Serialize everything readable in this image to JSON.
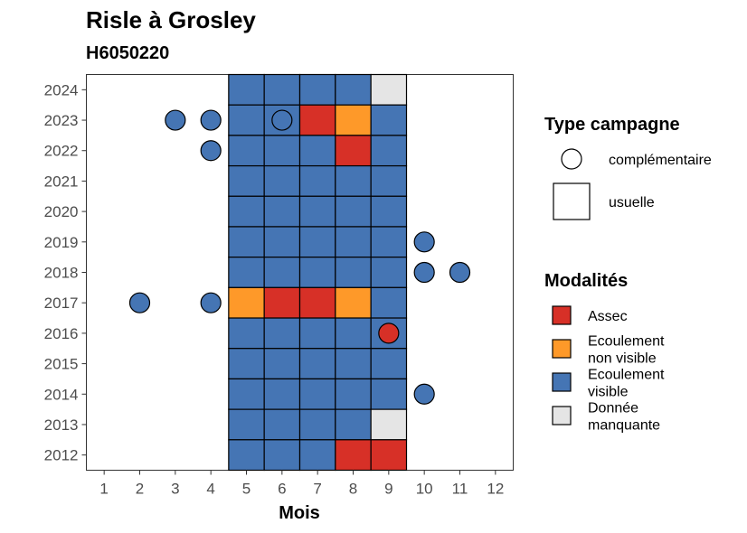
{
  "chart_data": {
    "type": "heatmap",
    "title": "Risle à Grosley",
    "subtitle": "H6050220",
    "xlabel": "Mois",
    "ylabel": "",
    "xlim": [
      0.5,
      12.5
    ],
    "ylim": [
      2011.5,
      2024.5
    ],
    "x_ticks": [
      "1",
      "2",
      "3",
      "4",
      "5",
      "6",
      "7",
      "8",
      "9",
      "10",
      "11",
      "12"
    ],
    "y_ticks": [
      "2012",
      "2013",
      "2014",
      "2015",
      "2016",
      "2017",
      "2018",
      "2019",
      "2020",
      "2021",
      "2022",
      "2023",
      "2024"
    ],
    "grid": false,
    "colors": {
      "assec": "#d73027",
      "non_visible": "#fe9929",
      "visible": "#4575b4",
      "manquante": "#e5e5e5"
    },
    "usuelle": [
      {
        "year": 2024,
        "values": [
          "visible",
          "visible",
          "visible",
          "visible",
          "manquante"
        ]
      },
      {
        "year": 2023,
        "values": [
          "visible",
          "visible",
          "assec",
          "non_visible",
          "visible"
        ]
      },
      {
        "year": 2022,
        "values": [
          "visible",
          "visible",
          "visible",
          "assec",
          "visible"
        ]
      },
      {
        "year": 2021,
        "values": [
          "visible",
          "visible",
          "visible",
          "visible",
          "visible"
        ]
      },
      {
        "year": 2020,
        "values": [
          "visible",
          "visible",
          "visible",
          "visible",
          "visible"
        ]
      },
      {
        "year": 2019,
        "values": [
          "visible",
          "visible",
          "visible",
          "visible",
          "visible"
        ]
      },
      {
        "year": 2018,
        "values": [
          "visible",
          "visible",
          "visible",
          "visible",
          "visible"
        ]
      },
      {
        "year": 2017,
        "values": [
          "non_visible",
          "assec",
          "assec",
          "non_visible",
          "visible"
        ]
      },
      {
        "year": 2016,
        "values": [
          "visible",
          "visible",
          "visible",
          "visible",
          "visible"
        ]
      },
      {
        "year": 2015,
        "values": [
          "visible",
          "visible",
          "visible",
          "visible",
          "visible"
        ]
      },
      {
        "year": 2014,
        "values": [
          "visible",
          "visible",
          "visible",
          "visible",
          "visible"
        ]
      },
      {
        "year": 2013,
        "values": [
          "visible",
          "visible",
          "visible",
          "visible",
          "manquante"
        ]
      },
      {
        "year": 2012,
        "values": [
          "visible",
          "visible",
          "visible",
          "assec",
          "assec"
        ]
      }
    ],
    "usuelle_months": [
      5,
      6,
      7,
      8,
      9
    ],
    "complementaire": [
      {
        "month": 3,
        "year": 2023,
        "value": "visible"
      },
      {
        "month": 4,
        "year": 2023,
        "value": "visible"
      },
      {
        "month": 6,
        "year": 2023,
        "value": "visible"
      },
      {
        "month": 4,
        "year": 2022,
        "value": "visible"
      },
      {
        "month": 10,
        "year": 2019,
        "value": "visible"
      },
      {
        "month": 10,
        "year": 2018,
        "value": "visible"
      },
      {
        "month": 11,
        "year": 2018,
        "value": "visible"
      },
      {
        "month": 2,
        "year": 2017,
        "value": "visible"
      },
      {
        "month": 4,
        "year": 2017,
        "value": "visible"
      },
      {
        "month": 9,
        "year": 2016,
        "value": "assec"
      },
      {
        "month": 10,
        "year": 2014,
        "value": "visible"
      }
    ],
    "legend": {
      "placement": "right",
      "type_title": "Type campagne",
      "type_items": [
        "complémentaire",
        "usuelle"
      ],
      "modalites_title": "Modalités",
      "modalites_items": [
        {
          "key": "assec",
          "lines": [
            "Assec"
          ]
        },
        {
          "key": "non_visible",
          "lines": [
            "Ecoulement",
            "non visible"
          ]
        },
        {
          "key": "visible",
          "lines": [
            "Ecoulement",
            "visible"
          ]
        },
        {
          "key": "manquante",
          "lines": [
            "Donnée",
            "manquante"
          ]
        }
      ]
    }
  }
}
